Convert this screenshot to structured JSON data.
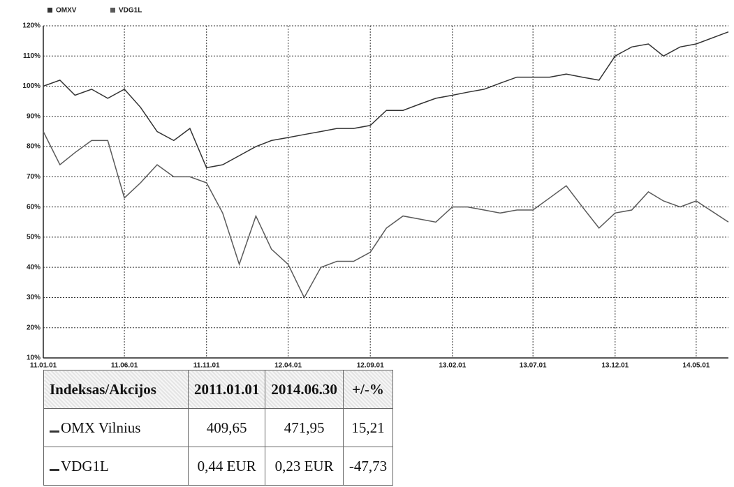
{
  "chart_data": {
    "type": "line",
    "x": [
      "2011-01-01",
      "2011-02-01",
      "2011-03-01",
      "2011-04-01",
      "2011-05-01",
      "2011-06-01",
      "2011-07-01",
      "2011-08-01",
      "2011-09-01",
      "2011-10-01",
      "2011-11-01",
      "2011-12-01",
      "2012-01-01",
      "2012-02-01",
      "2012-03-01",
      "2012-04-01",
      "2012-05-01",
      "2012-06-01",
      "2012-07-01",
      "2012-08-01",
      "2012-09-01",
      "2012-10-01",
      "2012-11-01",
      "2012-12-01",
      "2013-01-01",
      "2013-02-01",
      "2013-03-01",
      "2013-04-01",
      "2013-05-01",
      "2013-06-01",
      "2013-07-01",
      "2013-08-01",
      "2013-09-01",
      "2013-10-01",
      "2013-11-01",
      "2013-12-01",
      "2014-01-01",
      "2014-02-01",
      "2014-03-01",
      "2014-04-01",
      "2014-05-01",
      "2014-06-30"
    ],
    "series": [
      {
        "name": "OMXV",
        "color": "#333333",
        "values": [
          100,
          102,
          97,
          99,
          96,
          99,
          93,
          85,
          82,
          86,
          73,
          74,
          77,
          80,
          82,
          83,
          84,
          85,
          86,
          86,
          87,
          92,
          92,
          94,
          96,
          97,
          98,
          99,
          101,
          103,
          103,
          103,
          104,
          103,
          102,
          110,
          113,
          114,
          110,
          113,
          114,
          118
        ]
      },
      {
        "name": "VDG1L",
        "color": "#5a5a5a",
        "values": [
          85,
          74,
          78,
          82,
          82,
          63,
          68,
          74,
          70,
          70,
          68,
          58,
          41,
          57,
          46,
          41,
          30,
          40,
          42,
          42,
          45,
          53,
          57,
          56,
          55,
          60,
          60,
          59,
          58,
          59,
          59,
          63,
          67,
          60,
          53,
          58,
          59,
          65,
          62,
          60,
          62,
          55
        ]
      }
    ],
    "xlim": [
      "2011-01-01",
      "2014-06-30"
    ],
    "xticks": [
      {
        "value": "2011-01-01",
        "label": "11.01.01"
      },
      {
        "value": "2011-06-01",
        "label": "11.06.01"
      },
      {
        "value": "2011-11-01",
        "label": "11.11.01"
      },
      {
        "value": "2012-04-01",
        "label": "12.04.01"
      },
      {
        "value": "2012-09-01",
        "label": "12.09.01"
      },
      {
        "value": "2013-02-01",
        "label": "13.02.01"
      },
      {
        "value": "2013-07-01",
        "label": "13.07.01"
      },
      {
        "value": "2013-12-01",
        "label": "13.12.01"
      },
      {
        "value": "2014-05-01",
        "label": "14.05.01"
      }
    ],
    "ylim": [
      10,
      120
    ],
    "yticks": [
      {
        "value": 10,
        "label": "10%"
      },
      {
        "value": 20,
        "label": "20%"
      },
      {
        "value": 30,
        "label": "30%"
      },
      {
        "value": 40,
        "label": "40%"
      },
      {
        "value": 50,
        "label": "50%"
      },
      {
        "value": 60,
        "label": "60%"
      },
      {
        "value": 70,
        "label": "70%"
      },
      {
        "value": 80,
        "label": "80%"
      },
      {
        "value": 90,
        "label": "90%"
      },
      {
        "value": 100,
        "label": "100%"
      },
      {
        "value": 110,
        "label": "110%"
      },
      {
        "value": 120,
        "label": "120%"
      }
    ],
    "grid": true,
    "legend": "top-left"
  },
  "table": {
    "header": [
      "Indeksas/Akcijos",
      "2011.01.01",
      "2014.06.30",
      "+/-%"
    ],
    "rows": [
      [
        "OMX Vilnius",
        "409,65",
        "471,95",
        "15,21"
      ],
      [
        "VDG1L",
        "0,44 EUR",
        "0,23 EUR",
        "-47,73"
      ]
    ]
  }
}
